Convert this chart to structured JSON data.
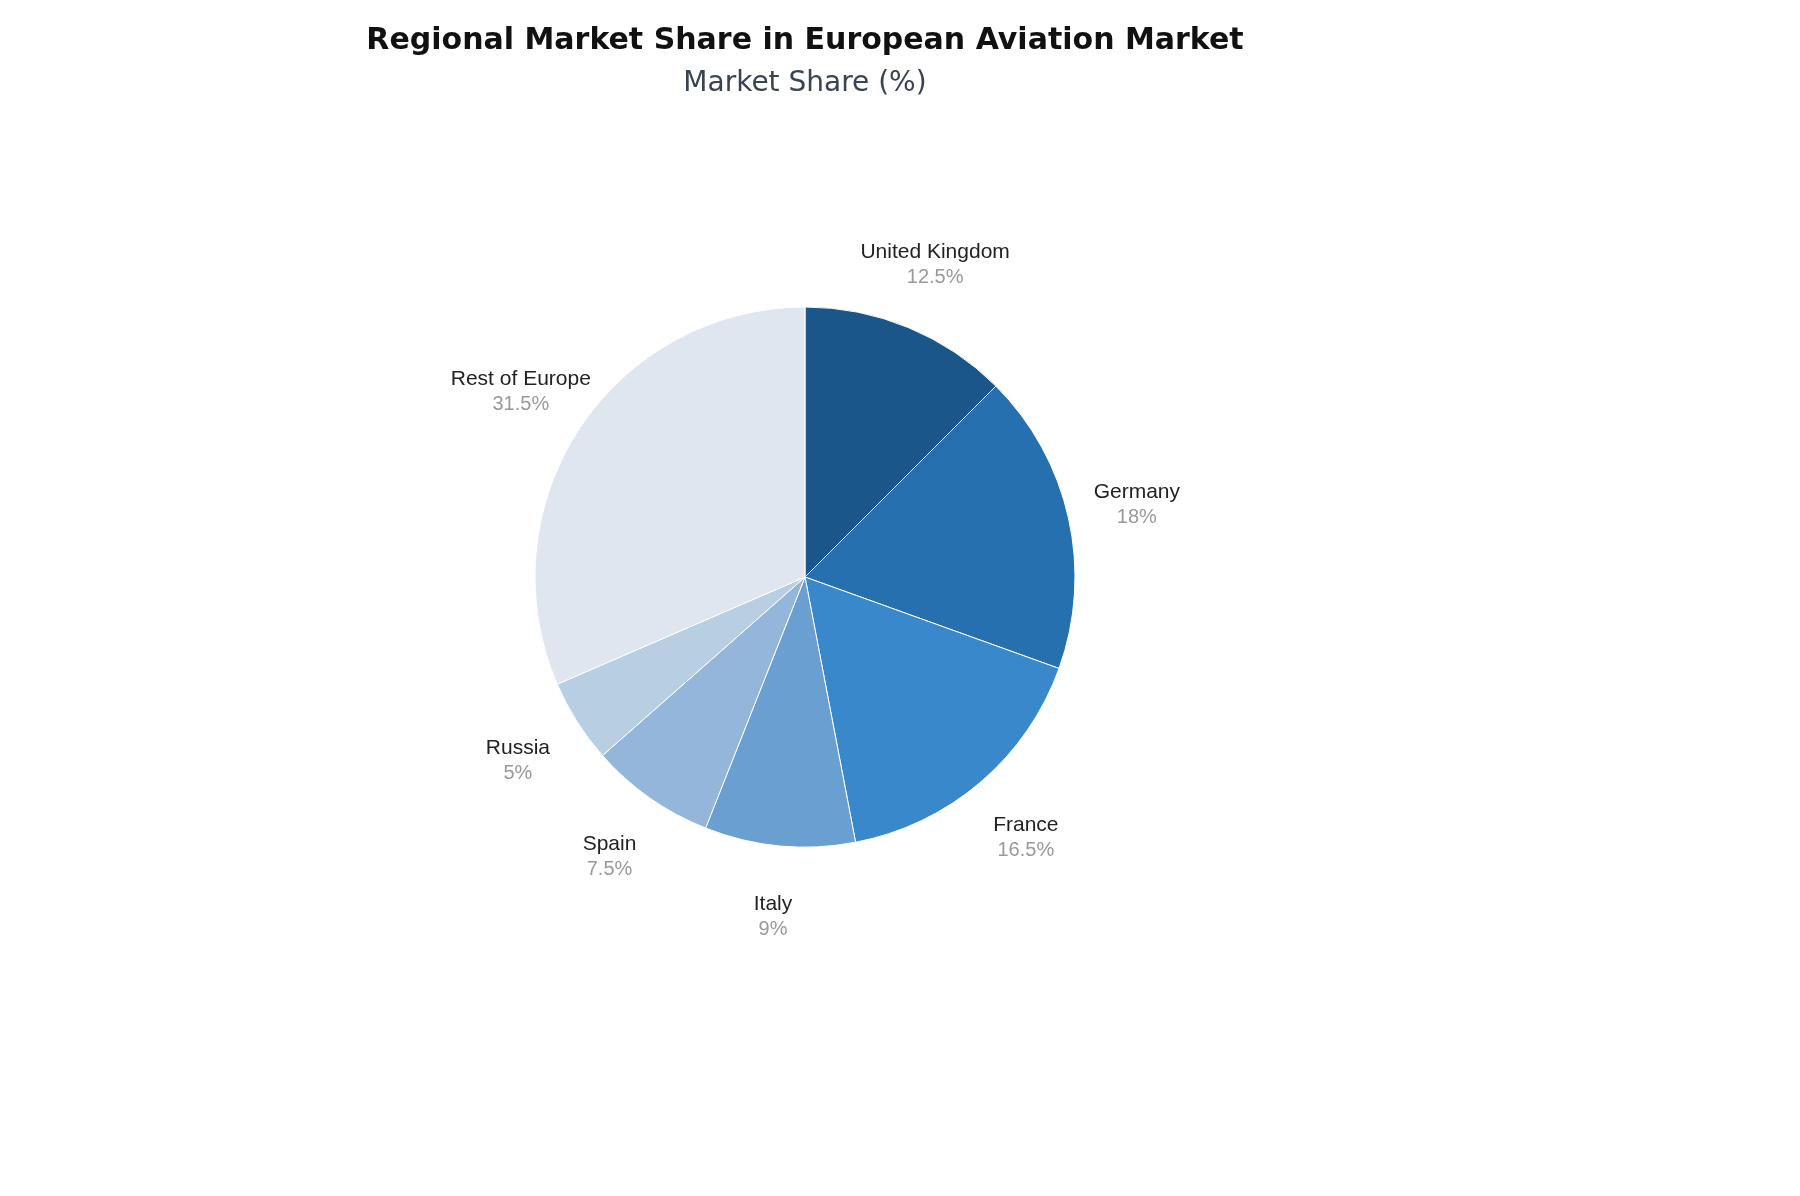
{
  "chart_data": {
    "type": "pie",
    "title": "Regional Market Share in European Aviation Market",
    "subtitle": "Market Share (%)",
    "categories": [
      "United Kingdom",
      "Germany",
      "France",
      "Italy",
      "Spain",
      "Russia",
      "Rest of Europe"
    ],
    "values": [
      12.5,
      18,
      16.5,
      9,
      7.5,
      5,
      31.5
    ],
    "value_labels": [
      "12.5%",
      "18%",
      "16.5%",
      "9%",
      "7.5%",
      "5%",
      "31.5%"
    ],
    "colors": [
      "#1b568b",
      "#2670b0",
      "#3a88cc",
      "#6a9fd1",
      "#93b6da",
      "#b8cfe3",
      "#dfe6ef"
    ],
    "legend": false
  }
}
